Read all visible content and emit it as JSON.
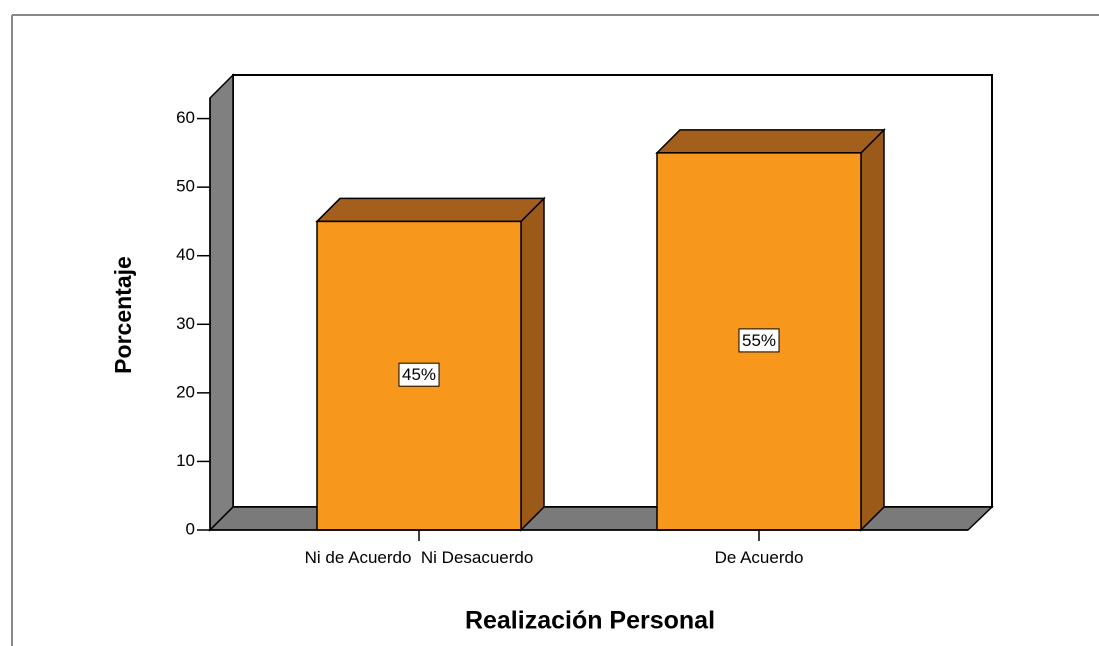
{
  "chart_data": {
    "type": "bar3d",
    "x_label": "Realización Personal",
    "y_label": "Porcentaje",
    "categories": [
      "Ni de Acuerdo  Ni Desacuerdo",
      "De Acuerdo"
    ],
    "values": [
      45,
      55
    ],
    "value_labels": [
      "45%",
      "55%"
    ],
    "color": "#f7981d",
    "ylim": [
      0,
      63
    ],
    "yticks": [
      0,
      10,
      20,
      30,
      40,
      50,
      60
    ]
  }
}
